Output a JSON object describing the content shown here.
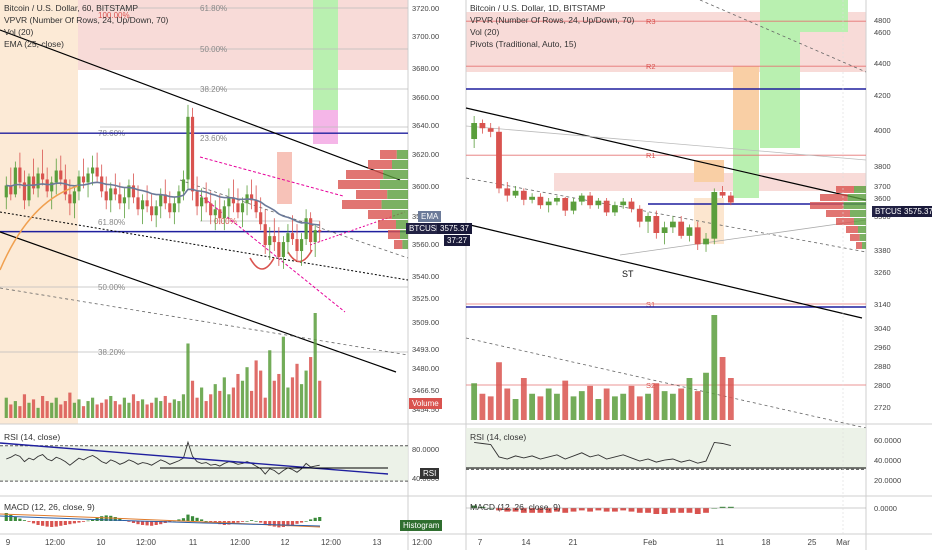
{
  "colors": {
    "up": "#5a9e3c",
    "down": "#d9534f",
    "ema": "#6b7a99",
    "channel": "#000000",
    "magenta": "#e6009a",
    "blue_level": "#1f1f9e",
    "fib_text": "#777777",
    "tag_price": "#222244",
    "tag_volume": "#d9534f",
    "tag_rsi": "#333333",
    "tag_hist": "#2f6e2f"
  },
  "left_chart": {
    "legend": {
      "title": "Bitcoin / U.S. Dollar, 60, BITSTAMP",
      "vpvr": "VPVR (Number Of Rows, 24, Up/Down, 70)",
      "vol": "Vol (20)",
      "ema": "EMA (25, close)"
    },
    "fib_labels": [
      "61.80%",
      "50.00%",
      "38.20%",
      "23.60%",
      "78.60%",
      "100.00%",
      "50.00%",
      "38.20%",
      "0.00%",
      "61.80%"
    ],
    "y_ticks": [
      "3720.00",
      "3700.00",
      "3680.00",
      "3660.00",
      "3640.00",
      "3620.00",
      "3600.00",
      "3580.00",
      "3560.00",
      "3540.00",
      "3525.00",
      "3509.00",
      "3493.00",
      "3480.00",
      "3466.50",
      "3454.50"
    ],
    "x_ticks": [
      "9",
      "12:00",
      "10",
      "12:00",
      "11",
      "12:00",
      "12",
      "12:00",
      "13",
      "12:00"
    ],
    "price_tag": "BTCUSD",
    "price_value": "3575.37",
    "countdown": "37:27",
    "ema_tag": "EMA",
    "volume_tag": "Volume",
    "rsi_legend": "RSI (14, close)",
    "rsi_ticks": [
      "80.0000",
      "40.0000"
    ],
    "rsi_tag": "RSI",
    "macd_legend": "MACD (12, 26, close, 9)",
    "macd_tag": "Histogram"
  },
  "right_chart": {
    "legend": {
      "title": "Bitcoin / U.S. Dollar, 1D, BITSTAMP",
      "vpvr": "VPVR (Number Of Rows, 24, Up/Down, 70)",
      "vol": "Vol (20)",
      "pivots": "Pivots (Traditional, Auto, 15)"
    },
    "pivot_labels": [
      "R3",
      "R2",
      "R1",
      "S1",
      "S2"
    ],
    "y_ticks": [
      "4800",
      "4600",
      "4400",
      "4200",
      "4000",
      "3800",
      "3700",
      "3600",
      "3500",
      "3380",
      "3260",
      "3140",
      "3040",
      "2960",
      "2880",
      "2800",
      "2720"
    ],
    "x_ticks": [
      "7",
      "14",
      "21",
      "Feb",
      "11",
      "18",
      "25",
      "Mar"
    ],
    "annotation": "ST",
    "price_tag": "BTCUSD",
    "price_value": "3575.37",
    "rsi_legend": "RSI (14, close)",
    "rsi_ticks": [
      "60.0000",
      "40.0000",
      "20.0000"
    ],
    "macd_legend": "MACD (12, 26, close, 9)",
    "macd_tick": "0.0000"
  },
  "chart_data": [
    {
      "type": "candlestick",
      "title": "Bitcoin / U.S. Dollar, 60, BITSTAMP",
      "ylim": [
        3450,
        3725
      ],
      "y_ticks": [
        3720,
        3700,
        3680,
        3660,
        3640,
        3620,
        3600,
        3580,
        3560,
        3540,
        3525,
        3509,
        3493,
        3480,
        3466.5,
        3454.5
      ],
      "x_ticks": [
        "9",
        "12:00",
        "10",
        "12:00",
        "11",
        "12:00",
        "12",
        "12:00",
        "13",
        "12:00"
      ],
      "last_price": 3575.37,
      "horizontal_levels": [
        3641,
        3575
      ],
      "candles": [
        [
          3598,
          3612,
          3590,
          3606
        ],
        [
          3606,
          3618,
          3596,
          3600
        ],
        [
          3600,
          3622,
          3598,
          3618
        ],
        [
          3618,
          3628,
          3604,
          3608
        ],
        [
          3608,
          3616,
          3590,
          3596
        ],
        [
          3596,
          3614,
          3592,
          3612
        ],
        [
          3612,
          3624,
          3600,
          3604
        ],
        [
          3604,
          3618,
          3598,
          3614
        ],
        [
          3614,
          3630,
          3606,
          3610
        ],
        [
          3610,
          3618,
          3598,
          3602
        ],
        [
          3602,
          3612,
          3590,
          3608
        ],
        [
          3608,
          3624,
          3600,
          3616
        ],
        [
          3616,
          3626,
          3606,
          3610
        ],
        [
          3610,
          3620,
          3596,
          3600
        ],
        [
          3600,
          3610,
          3586,
          3594
        ],
        [
          3594,
          3606,
          3584,
          3602
        ],
        [
          3602,
          3616,
          3596,
          3612
        ],
        [
          3612,
          3624,
          3604,
          3608
        ],
        [
          3608,
          3618,
          3598,
          3614
        ],
        [
          3614,
          3626,
          3606,
          3618
        ],
        [
          3618,
          3628,
          3608,
          3612
        ],
        [
          3612,
          3620,
          3598,
          3602
        ],
        [
          3602,
          3612,
          3590,
          3596
        ],
        [
          3596,
          3608,
          3588,
          3604
        ],
        [
          3604,
          3614,
          3596,
          3600
        ],
        [
          3600,
          3608,
          3590,
          3594
        ],
        [
          3594,
          3604,
          3584,
          3598
        ],
        [
          3598,
          3610,
          3590,
          3606
        ],
        [
          3606,
          3614,
          3594,
          3598
        ],
        [
          3598,
          3606,
          3586,
          3590
        ],
        [
          3590,
          3600,
          3580,
          3596
        ],
        [
          3596,
          3606,
          3588,
          3592
        ],
        [
          3592,
          3600,
          3582,
          3586
        ],
        [
          3586,
          3596,
          3578,
          3592
        ],
        [
          3592,
          3604,
          3584,
          3600
        ],
        [
          3600,
          3610,
          3590,
          3594
        ],
        [
          3594,
          3602,
          3584,
          3588
        ],
        [
          3588,
          3598,
          3580,
          3594
        ],
        [
          3594,
          3606,
          3588,
          3602
        ],
        [
          3602,
          3616,
          3596,
          3610
        ],
        [
          3610,
          3660,
          3604,
          3652
        ],
        [
          3652,
          3658,
          3596,
          3602
        ],
        [
          3602,
          3612,
          3586,
          3592
        ],
        [
          3592,
          3604,
          3582,
          3598
        ],
        [
          3598,
          3608,
          3588,
          3594
        ],
        [
          3594,
          3602,
          3580,
          3586
        ],
        [
          3586,
          3596,
          3576,
          3590
        ],
        [
          3590,
          3600,
          3580,
          3584
        ],
        [
          3584,
          3596,
          3576,
          3592
        ],
        [
          3592,
          3604,
          3584,
          3598
        ],
        [
          3598,
          3610,
          3588,
          3594
        ],
        [
          3594,
          3604,
          3584,
          3588
        ],
        [
          3588,
          3598,
          3578,
          3594
        ],
        [
          3594,
          3606,
          3586,
          3600
        ],
        [
          3600,
          3610,
          3590,
          3596
        ],
        [
          3596,
          3606,
          3584,
          3588
        ],
        [
          3588,
          3598,
          3576,
          3580
        ],
        [
          3580,
          3590,
          3560,
          3566
        ],
        [
          3566,
          3578,
          3556,
          3572
        ],
        [
          3572,
          3584,
          3562,
          3568
        ],
        [
          3568,
          3578,
          3552,
          3558
        ],
        [
          3558,
          3572,
          3550,
          3568
        ],
        [
          3568,
          3580,
          3560,
          3574
        ],
        [
          3574,
          3586,
          3566,
          3570
        ],
        [
          3570,
          3580,
          3556,
          3562
        ],
        [
          3562,
          3574,
          3552,
          3570
        ],
        [
          3570,
          3590,
          3566,
          3584
        ],
        [
          3584,
          3588,
          3562,
          3568
        ],
        [
          3568,
          3580,
          3558,
          3576
        ],
        [
          3576,
          3582,
          3568,
          3575
        ]
      ],
      "volume": [
        12,
        8,
        10,
        7,
        14,
        9,
        11,
        6,
        13,
        10,
        9,
        12,
        8,
        10,
        15,
        9,
        11,
        7,
        10,
        12,
        8,
        9,
        11,
        13,
        10,
        8,
        12,
        9,
        14,
        10,
        11,
        8,
        9,
        12,
        10,
        13,
        9,
        11,
        10,
        14,
        44,
        22,
        12,
        18,
        10,
        14,
        20,
        16,
        24,
        14,
        18,
        26,
        22,
        30,
        16,
        34,
        28,
        12,
        40,
        22,
        26,
        48,
        18,
        24,
        32,
        20,
        28,
        36,
        62,
        22
      ],
      "rsi_ylim": [
        20,
        90
      ],
      "rsi": [
        55,
        57,
        60,
        58,
        52,
        56,
        54,
        58,
        60,
        55,
        53,
        57,
        55,
        52,
        48,
        52,
        56,
        54,
        57,
        59,
        56,
        52,
        50,
        54,
        52,
        49,
        51,
        54,
        52,
        49,
        51,
        50,
        48,
        51,
        54,
        52,
        49,
        51,
        53,
        56,
        74,
        58,
        52,
        50,
        51,
        48,
        49,
        47,
        50,
        52,
        51,
        49,
        50,
        52,
        50,
        47,
        44,
        38,
        44,
        42,
        38,
        42,
        45,
        43,
        40,
        44,
        50,
        46,
        47,
        48
      ],
      "macd": [
        2,
        1.5,
        1,
        0.6,
        0.2,
        -0.2,
        -0.6,
        -1,
        -1.2,
        -1.4,
        -1.5,
        -1.4,
        -1.2,
        -1,
        -0.8,
        -0.6,
        -0.4,
        -0.2,
        0.1,
        0.4,
        0.8,
        1.2,
        1.4,
        1.3,
        1,
        0.6,
        0.2,
        -0.2,
        -0.5,
        -0.8,
        -1,
        -1.1,
        -1.2,
        -1,
        -0.8,
        -0.5,
        -0.2,
        0.1,
        0.4,
        0.7,
        1.6,
        1.2,
        0.8,
        0.4,
        0,
        -0.3,
        -0.6,
        -0.8,
        -1,
        -0.9,
        -0.7,
        -0.4,
        -0.2,
        0,
        0.2,
        0,
        -0.4,
        -0.9,
        -1.2,
        -1.4,
        -1.6,
        -1.5,
        -1.3,
        -1,
        -0.7,
        -0.4,
        0,
        0.4,
        0.8,
        1
      ]
    },
    {
      "type": "candlestick",
      "title": "Bitcoin / U.S. Dollar, 1D, BITSTAMP",
      "ylim": [
        2700,
        4900
      ],
      "y_ticks": [
        4800,
        4600,
        4400,
        4200,
        4000,
        3800,
        3700,
        3600,
        3500,
        3380,
        3260,
        3140,
        3040,
        2960,
        2880,
        2800,
        2720
      ],
      "x_ticks": [
        "7",
        "14",
        "21",
        "Feb",
        "11",
        "18",
        "25",
        "Mar"
      ],
      "last_price": 3575.37,
      "pivots": {
        "R3": 4780,
        "R2": 4380,
        "R1": 3860,
        "S1": 3140,
        "S2": 2800
      },
      "candles": [
        [
          3950,
          4080,
          3900,
          4040
        ],
        [
          4040,
          4060,
          3980,
          4010
        ],
        [
          4010,
          4040,
          3960,
          3990
        ],
        [
          3990,
          4020,
          3640,
          3680
        ],
        [
          3680,
          3720,
          3580,
          3620
        ],
        [
          3620,
          3700,
          3600,
          3660
        ],
        [
          3660,
          3680,
          3560,
          3590
        ],
        [
          3590,
          3640,
          3570,
          3610
        ],
        [
          3610,
          3640,
          3540,
          3560
        ],
        [
          3560,
          3600,
          3520,
          3580
        ],
        [
          3580,
          3620,
          3560,
          3600
        ],
        [
          3600,
          3610,
          3500,
          3530
        ],
        [
          3530,
          3600,
          3510,
          3580
        ],
        [
          3580,
          3640,
          3560,
          3620
        ],
        [
          3620,
          3650,
          3540,
          3560
        ],
        [
          3560,
          3600,
          3540,
          3585
        ],
        [
          3585,
          3600,
          3500,
          3520
        ],
        [
          3520,
          3580,
          3500,
          3560
        ],
        [
          3560,
          3600,
          3540,
          3580
        ],
        [
          3580,
          3600,
          3520,
          3540
        ],
        [
          3540,
          3560,
          3460,
          3480
        ],
        [
          3480,
          3520,
          3440,
          3500
        ],
        [
          3500,
          3530,
          3420,
          3440
        ],
        [
          3440,
          3480,
          3400,
          3460
        ],
        [
          3460,
          3500,
          3440,
          3480
        ],
        [
          3480,
          3500,
          3420,
          3430
        ],
        [
          3430,
          3470,
          3410,
          3460
        ],
        [
          3460,
          3480,
          3380,
          3400
        ],
        [
          3400,
          3440,
          3370,
          3420
        ],
        [
          3420,
          3680,
          3400,
          3650
        ],
        [
          3650,
          3700,
          3600,
          3620
        ],
        [
          3620,
          3650,
          3560,
          3575
        ]
      ],
      "volume": [
        14,
        10,
        9,
        22,
        12,
        8,
        16,
        10,
        9,
        12,
        10,
        15,
        9,
        11,
        13,
        8,
        12,
        9,
        10,
        13,
        9,
        10,
        14,
        11,
        10,
        12,
        16,
        11,
        18,
        40,
        24,
        16
      ],
      "rsi_ylim": [
        10,
        70
      ],
      "rsi": [
        56,
        55,
        54,
        42,
        40,
        43,
        41,
        43,
        40,
        42,
        44,
        40,
        43,
        46,
        42,
        44,
        40,
        42,
        44,
        41,
        38,
        40,
        37,
        39,
        40,
        37,
        39,
        36,
        38,
        56,
        55,
        53
      ],
      "macd": [
        0.02,
        0.01,
        0,
        -0.02,
        -0.03,
        -0.03,
        -0.04,
        -0.04,
        -0.04,
        -0.04,
        -0.03,
        -0.04,
        -0.03,
        -0.02,
        -0.03,
        -0.02,
        -0.03,
        -0.03,
        -0.02,
        -0.03,
        -0.04,
        -0.04,
        -0.05,
        -0.05,
        -0.04,
        -0.04,
        -0.04,
        -0.05,
        -0.04,
        0,
        0.01,
        0.01
      ]
    }
  ]
}
